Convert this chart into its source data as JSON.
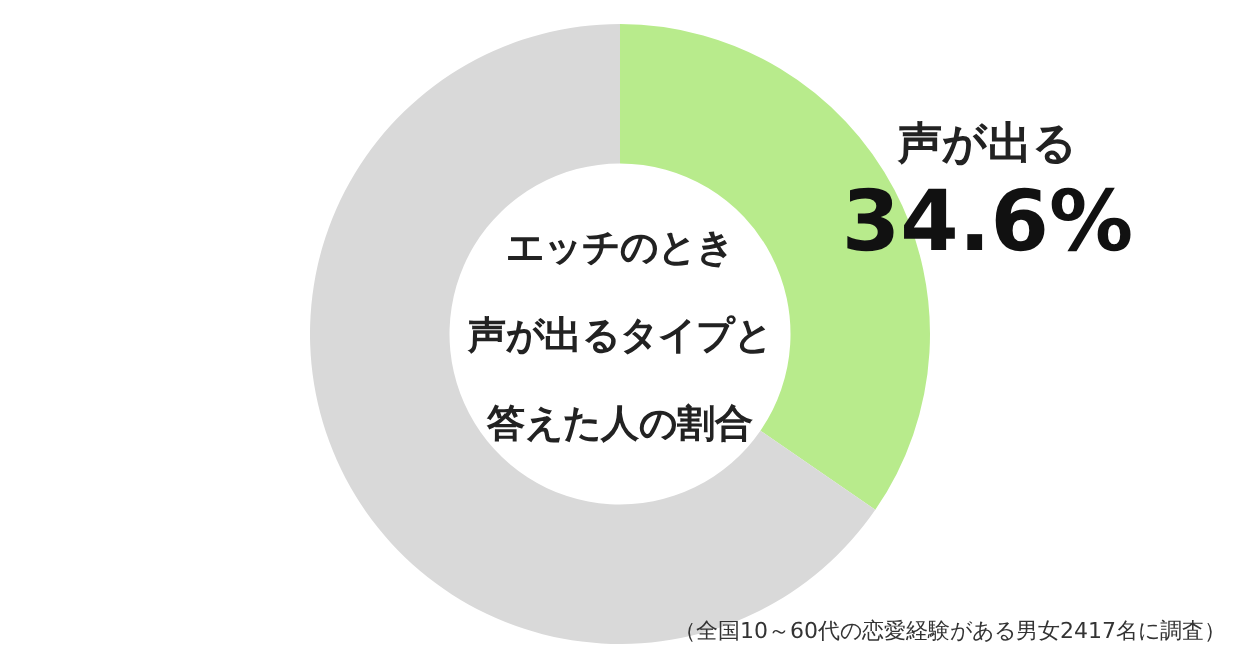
{
  "chart_data": {
    "type": "donut",
    "title": "エッチのとき声が出るタイプと答えた人の割合",
    "categories": [
      "声が出る",
      null
    ],
    "values": [
      34.6,
      65.4
    ],
    "colors": [
      "#b8eb8c",
      "#d9d9d9"
    ],
    "value_labels": [
      "34.6%",
      null
    ],
    "annotations": [
      "（全国10～60代の恋愛経験がある男女2417名に調査）"
    ]
  }
}
